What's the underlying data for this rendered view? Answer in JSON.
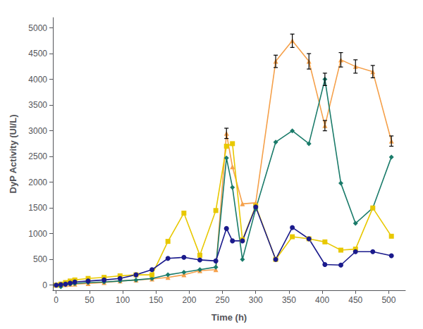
{
  "chart_data": {
    "type": "line",
    "xlabel": "Time (h)",
    "ylabel": "DyP Activity (UI/L)",
    "x": [
      0,
      7,
      14,
      21,
      28,
      48,
      72,
      96,
      120,
      144,
      168,
      192,
      216,
      240,
      256,
      265,
      280,
      300,
      330,
      355,
      380,
      404,
      428,
      450,
      476,
      504
    ],
    "xlim": [
      -5,
      525
    ],
    "xticks": [
      0,
      50,
      100,
      150,
      200,
      250,
      300,
      350,
      400,
      450,
      500
    ],
    "ylim": [
      -100,
      5200
    ],
    "yticks": [
      0,
      500,
      1000,
      1500,
      2000,
      2500,
      3000,
      3500,
      4000,
      4500,
      5000
    ],
    "grid": false,
    "series": [
      {
        "color": "#F5A04A",
        "marker": "triangle",
        "values": [
          0,
          5,
          10,
          15,
          20,
          30,
          50,
          80,
          100,
          120,
          150,
          200,
          280,
          300,
          2950,
          2300,
          1580,
          1600,
          4350,
          4750,
          4350,
          3100,
          4380,
          4250,
          4150,
          2800
        ],
        "yerr": [
          0,
          0,
          0,
          0,
          0,
          0,
          0,
          0,
          0,
          0,
          0,
          0,
          0,
          0,
          100,
          0,
          0,
          0,
          120,
          130,
          150,
          100,
          140,
          130,
          120,
          100
        ]
      },
      {
        "color": "#1A7B6A",
        "marker": "diamond",
        "values": [
          0,
          -30,
          10,
          20,
          30,
          50,
          60,
          80,
          100,
          130,
          200,
          250,
          300,
          350,
          2470,
          1900,
          500,
          1480,
          2780,
          3000,
          2750,
          4000,
          1980,
          1200,
          1500,
          2490
        ],
        "yerr": [
          0,
          0,
          0,
          0,
          0,
          0,
          0,
          0,
          0,
          0,
          0,
          0,
          0,
          0,
          0,
          0,
          0,
          0,
          0,
          0,
          0,
          120,
          0,
          0,
          0,
          0
        ]
      },
      {
        "color": "#E8C800",
        "marker": "square",
        "values": [
          0,
          20,
          50,
          80,
          100,
          130,
          150,
          180,
          200,
          200,
          850,
          1400,
          580,
          1450,
          2700,
          2750,
          880,
          1540,
          500,
          940,
          900,
          840,
          680,
          700,
          1500,
          950
        ],
        "yerr": [
          0,
          0,
          0,
          0,
          0,
          0,
          0,
          0,
          0,
          0,
          0,
          0,
          0,
          0,
          0,
          0,
          0,
          0,
          0,
          0,
          0,
          0,
          0,
          0,
          0,
          0
        ]
      },
      {
        "color": "#1A1A8C",
        "marker": "circle",
        "values": [
          0,
          10,
          20,
          40,
          60,
          80,
          100,
          130,
          200,
          300,
          520,
          540,
          490,
          470,
          1100,
          860,
          860,
          1520,
          500,
          1120,
          900,
          400,
          390,
          650,
          650,
          570
        ],
        "yerr": [
          0,
          0,
          0,
          0,
          0,
          0,
          0,
          0,
          0,
          0,
          0,
          0,
          0,
          0,
          0,
          0,
          0,
          0,
          0,
          0,
          0,
          0,
          0,
          0,
          0,
          0
        ]
      }
    ]
  }
}
